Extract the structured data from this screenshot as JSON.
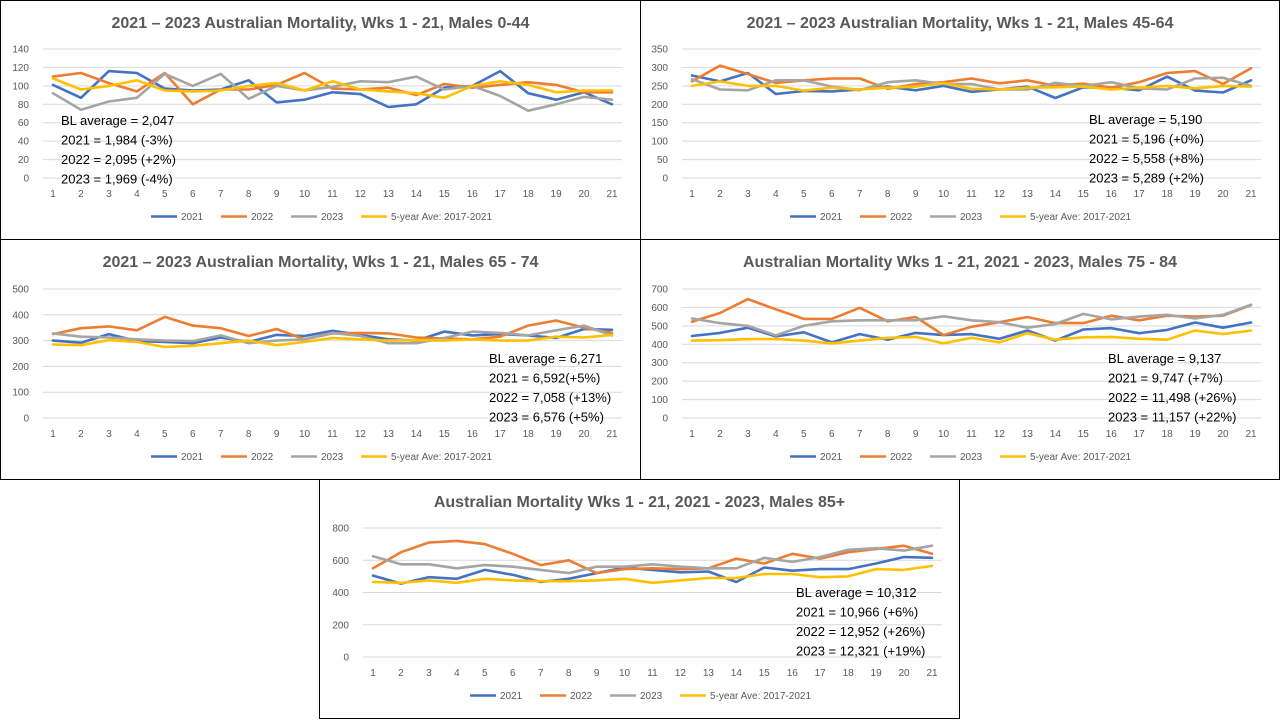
{
  "chart_data": [
    {
      "type": "line",
      "title": "2021 – 2023 Australian Mortality, Wks 1 - 21, Males 0-44",
      "x": [
        1,
        2,
        3,
        4,
        5,
        6,
        7,
        8,
        9,
        10,
        11,
        12,
        13,
        14,
        15,
        16,
        17,
        18,
        19,
        20,
        21
      ],
      "ylim": [
        0,
        140
      ],
      "yticks": [
        0,
        20,
        40,
        60,
        80,
        100,
        120,
        140
      ],
      "grid": true,
      "legend_position": "bottom",
      "series": [
        {
          "name": "2021",
          "color": "#4472C4",
          "values": [
            101,
            87,
            116,
            114,
            97,
            95,
            96,
            106,
            82,
            85,
            93,
            91,
            77,
            80,
            98,
            100,
            116,
            92,
            85,
            93,
            80
          ]
        },
        {
          "name": "2022",
          "color": "#ED7D31",
          "values": [
            110,
            114,
            103,
            94,
            114,
            80,
            96,
            96,
            101,
            114,
            97,
            96,
            98,
            90,
            102,
            98,
            101,
            104,
            101,
            93,
            93
          ]
        },
        {
          "name": "2023",
          "color": "#A5A5A5",
          "values": [
            92,
            74,
            83,
            87,
            113,
            100,
            113,
            86,
            100,
            95,
            99,
            105,
            104,
            110,
            96,
            100,
            89,
            73,
            80,
            88,
            85
          ]
        },
        {
          "name": "5-year Ave: 2017-2021",
          "color": "#FFC000",
          "values": [
            108,
            96,
            100,
            106,
            95,
            94,
            95,
            100,
            103,
            95,
            105,
            96,
            94,
            92,
            87,
            100,
            105,
            101,
            93,
            95,
            95
          ]
        }
      ],
      "annotations": [
        "BL average = 2,047",
        "2021 = 1,984 (-3%)",
        "2022 = 2,095 (+2%)",
        "2023 = 1,969 (-4%)"
      ]
    },
    {
      "type": "line",
      "title": "2021 – 2023 Australian Mortality, Wks 1 - 21, Males 45-64",
      "x": [
        1,
        2,
        3,
        4,
        5,
        6,
        7,
        8,
        9,
        10,
        11,
        12,
        13,
        14,
        15,
        16,
        17,
        18,
        19,
        20,
        21
      ],
      "ylim": [
        0,
        350
      ],
      "yticks": [
        0,
        50,
        100,
        150,
        200,
        250,
        300,
        350
      ],
      "grid": true,
      "legend_position": "bottom",
      "series": [
        {
          "name": "2021",
          "color": "#4472C4",
          "values": [
            278,
            262,
            285,
            228,
            236,
            235,
            240,
            248,
            238,
            250,
            234,
            240,
            248,
            217,
            246,
            245,
            238,
            275,
            237,
            232,
            265
          ]
        },
        {
          "name": "2022",
          "color": "#ED7D31",
          "values": [
            262,
            305,
            282,
            258,
            265,
            270,
            270,
            242,
            255,
            260,
            270,
            257,
            265,
            250,
            256,
            245,
            260,
            285,
            290,
            255,
            298
          ]
        },
        {
          "name": "2023",
          "color": "#A5A5A5",
          "values": [
            268,
            240,
            238,
            265,
            265,
            248,
            238,
            260,
            265,
            255,
            255,
            240,
            240,
            258,
            250,
            260,
            243,
            240,
            270,
            272,
            250
          ]
        },
        {
          "name": "5-year Ave: 2017-2021",
          "color": "#FFC000",
          "values": [
            250,
            262,
            250,
            250,
            237,
            245,
            240,
            245,
            248,
            258,
            242,
            240,
            245,
            246,
            248,
            240,
            245,
            250,
            243,
            250,
            248
          ]
        }
      ],
      "annotations": [
        "BL average = 5,190",
        "2021 = 5,196 (+0%)",
        "2022 = 5,558 (+8%)",
        "2023 = 5,289 (+2%)"
      ]
    },
    {
      "type": "line",
      "title": "2021 – 2023 Australian Mortality, Wks 1 - 21, Males 65 - 74",
      "x": [
        1,
        2,
        3,
        4,
        5,
        6,
        7,
        8,
        9,
        10,
        11,
        12,
        13,
        14,
        15,
        16,
        17,
        18,
        19,
        20,
        21
      ],
      "ylim": [
        0,
        500
      ],
      "yticks": [
        0,
        100,
        200,
        300,
        400,
        500
      ],
      "grid": true,
      "legend_position": "bottom",
      "series": [
        {
          "name": "2021",
          "color": "#4472C4",
          "values": [
            300,
            292,
            325,
            298,
            295,
            290,
            312,
            295,
            322,
            318,
            338,
            322,
            305,
            300,
            335,
            320,
            325,
            320,
            310,
            345,
            342
          ]
        },
        {
          "name": "2022",
          "color": "#ED7D31",
          "values": [
            325,
            348,
            355,
            340,
            392,
            358,
            348,
            318,
            345,
            305,
            328,
            330,
            328,
            312,
            308,
            305,
            315,
            358,
            378,
            350,
            330
          ]
        },
        {
          "name": "2023",
          "color": "#A5A5A5",
          "values": [
            328,
            315,
            312,
            305,
            300,
            298,
            320,
            290,
            300,
            305,
            330,
            318,
            290,
            290,
            310,
            335,
            330,
            320,
            340,
            358,
            320
          ]
        },
        {
          "name": "5-year Ave: 2017-2021",
          "color": "#FFC000",
          "values": [
            285,
            282,
            302,
            295,
            275,
            280,
            290,
            300,
            282,
            295,
            310,
            305,
            300,
            302,
            300,
            305,
            300,
            300,
            315,
            312,
            322
          ]
        }
      ],
      "annotations": [
        "BL average = 6,271",
        "2021 = 6,592(+5%)",
        "2022 = 7,058 (+13%)",
        "2023 = 6,576 (+5%)"
      ]
    },
    {
      "type": "line",
      "title": "Australian Mortality Wks 1 - 21, 2021 - 2023, Males 75 - 84",
      "x": [
        1,
        2,
        3,
        4,
        5,
        6,
        7,
        8,
        9,
        10,
        11,
        12,
        13,
        14,
        15,
        16,
        17,
        18,
        19,
        20,
        21
      ],
      "ylim": [
        0,
        700
      ],
      "yticks": [
        0,
        100,
        200,
        300,
        400,
        500,
        600,
        700
      ],
      "grid": true,
      "legend_position": "bottom",
      "series": [
        {
          "name": "2021",
          "color": "#4472C4",
          "values": [
            445,
            462,
            490,
            443,
            465,
            410,
            455,
            425,
            462,
            450,
            455,
            430,
            475,
            420,
            480,
            488,
            460,
            478,
            518,
            490,
            518
          ]
        },
        {
          "name": "2022",
          "color": "#ED7D31",
          "values": [
            522,
            570,
            645,
            590,
            538,
            538,
            598,
            525,
            548,
            450,
            495,
            520,
            548,
            515,
            515,
            555,
            530,
            555,
            550,
            555,
            612
          ]
        },
        {
          "name": "2023",
          "color": "#A5A5A5",
          "values": [
            540,
            515,
            500,
            448,
            500,
            525,
            530,
            530,
            530,
            552,
            530,
            520,
            490,
            510,
            565,
            535,
            550,
            560,
            540,
            560,
            615
          ]
        },
        {
          "name": "5-year Ave: 2017-2021",
          "color": "#FFC000",
          "values": [
            420,
            422,
            428,
            428,
            420,
            405,
            420,
            435,
            440,
            405,
            435,
            410,
            460,
            425,
            438,
            440,
            430,
            425,
            475,
            455,
            475
          ]
        }
      ],
      "annotations": [
        "BL average = 9,137",
        "2021 = 9,747 (+7%)",
        "2022 = 11,498 (+26%)",
        "2023 = 11,157 (+22%)"
      ]
    },
    {
      "type": "line",
      "title": "Australian Mortality Wks 1 - 21, 2021 - 2023, Males 85+",
      "x": [
        1,
        2,
        3,
        4,
        5,
        6,
        7,
        8,
        9,
        10,
        11,
        12,
        13,
        14,
        15,
        16,
        17,
        18,
        19,
        20,
        21
      ],
      "ylim": [
        0,
        800
      ],
      "yticks": [
        0,
        200,
        400,
        600,
        800
      ],
      "grid": true,
      "legend_position": "bottom",
      "series": [
        {
          "name": "2021",
          "color": "#4472C4",
          "values": [
            505,
            455,
            495,
            485,
            540,
            510,
            465,
            485,
            520,
            555,
            540,
            525,
            530,
            465,
            555,
            535,
            545,
            545,
            580,
            620,
            615
          ]
        },
        {
          "name": "2022",
          "color": "#ED7D31",
          "values": [
            550,
            650,
            710,
            720,
            700,
            640,
            570,
            600,
            520,
            545,
            550,
            545,
            550,
            610,
            580,
            640,
            610,
            650,
            670,
            690,
            640
          ]
        },
        {
          "name": "2023",
          "color": "#A5A5A5",
          "values": [
            625,
            575,
            575,
            550,
            570,
            560,
            540,
            520,
            560,
            560,
            575,
            560,
            550,
            550,
            615,
            590,
            620,
            665,
            675,
            660,
            690
          ]
        },
        {
          "name": "5-year Ave: 2017-2021",
          "color": "#FFC000",
          "values": [
            465,
            460,
            475,
            460,
            485,
            475,
            470,
            470,
            475,
            485,
            460,
            475,
            490,
            490,
            515,
            515,
            495,
            500,
            545,
            540,
            565
          ]
        }
      ],
      "annotations": [
        "BL average = 10,312",
        "2021 = 10,966 (+6%)",
        "2022 = 12,952 (+26%)",
        "2023 = 12,321 (+19%)"
      ]
    }
  ]
}
